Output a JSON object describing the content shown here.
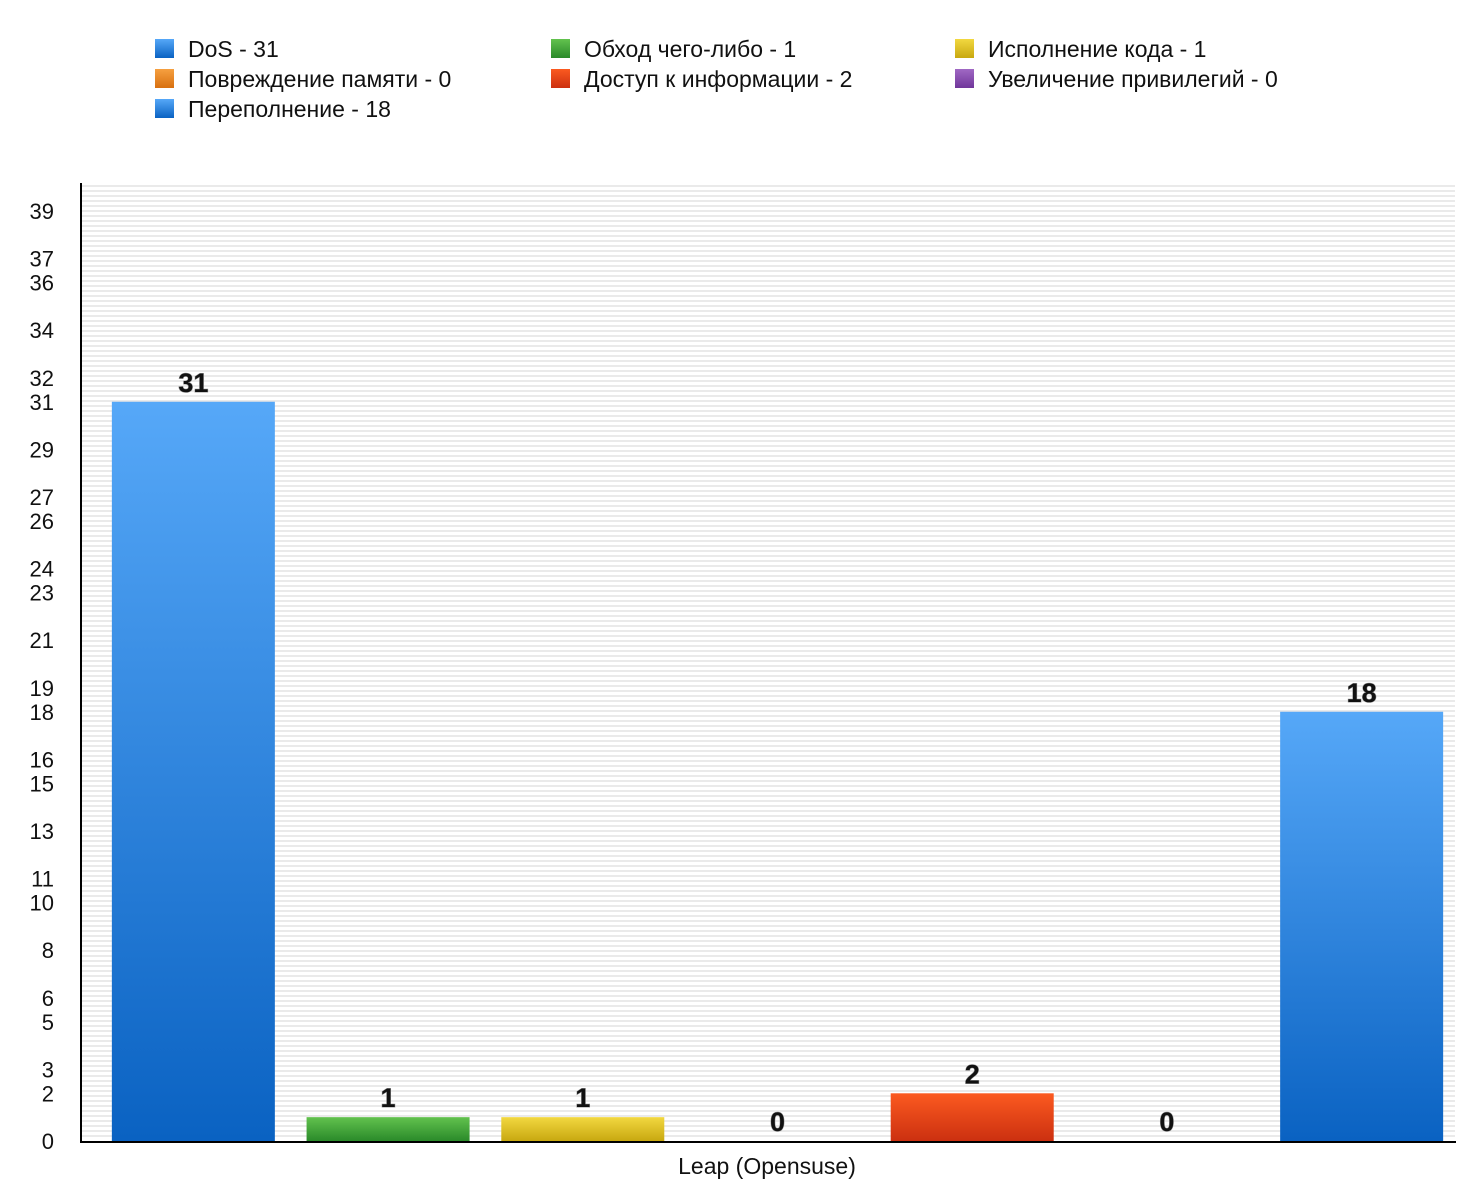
{
  "chart_data": {
    "type": "bar",
    "title": "",
    "xlabel": "",
    "ylabel": "",
    "categories": [
      "Leap (Opensuse)"
    ],
    "ylim": [
      0,
      39
    ],
    "yticks": [
      0,
      2,
      3,
      5,
      6,
      8,
      10,
      11,
      13,
      15,
      16,
      18,
      19,
      21,
      23,
      24,
      26,
      27,
      29,
      31,
      32,
      34,
      36,
      37,
      39
    ],
    "grid": true,
    "legend_position": "top",
    "series": [
      {
        "name": "DoS",
        "legend": "DoS - 31",
        "value": 31,
        "label": "31",
        "color": "#3a8ee6",
        "color_top": "#56a8f8",
        "color_bottom": "#0a62c2"
      },
      {
        "name": "Обход чего-либо",
        "legend": "Обход чего-либо - 1",
        "value": 1,
        "label": "1",
        "color": "#3aa33a",
        "color_top": "#62c24e",
        "color_bottom": "#2a8a2a"
      },
      {
        "name": "Исполнение кода",
        "legend": "Исполнение кода - 1",
        "value": 1,
        "label": "1",
        "color": "#e0c020",
        "color_top": "#f2d840",
        "color_bottom": "#c8a810"
      },
      {
        "name": "Повреждение памяти",
        "legend": "Повреждение памяти - 0",
        "value": 0,
        "label": "0",
        "color": "#ef8a1a",
        "color_top": "#f6a040",
        "color_bottom": "#d87010"
      },
      {
        "name": "Доступ к информации",
        "legend": "Доступ к информации - 2",
        "value": 2,
        "label": "2",
        "color": "#ee4a1a",
        "color_top": "#fb5a20",
        "color_bottom": "#cc3010"
      },
      {
        "name": "Увеличение привилегий",
        "legend": "Увеличение привилегий - 0",
        "value": 0,
        "label": "0",
        "color": "#8a4ab0",
        "color_top": "#a068c4",
        "color_bottom": "#70369a"
      },
      {
        "name": "Переполнение",
        "legend": "Переполнение - 18",
        "value": 18,
        "label": "18",
        "color": "#3a8ee6",
        "color_top": "#56a8f8",
        "color_bottom": "#0a62c2"
      }
    ]
  }
}
